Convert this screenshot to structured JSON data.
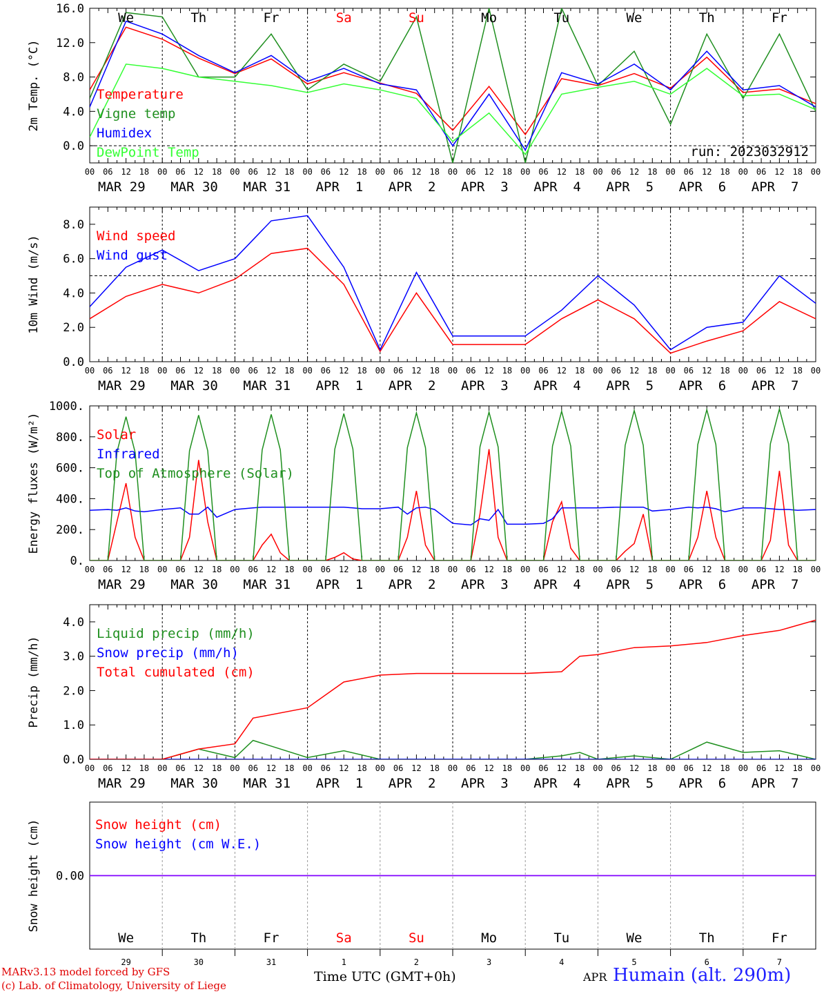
{
  "meta": {
    "run_label": "run: 2023032912",
    "model_line": "MARv3.13 model forced by GFS",
    "copyright_line": "(c) Lab. of Climatology, University of Liege",
    "x_axis_title": "Time UTC (GMT+0h)",
    "station": "Humain (alt. 290m)",
    "month_footer": "APR"
  },
  "days": {
    "weekday_names": [
      "We",
      "Th",
      "Fr",
      "Sa",
      "Su",
      "Mo",
      "Tu",
      "We",
      "Th",
      "Fr"
    ],
    "weekend_flags": [
      false,
      false,
      false,
      true,
      true,
      false,
      false,
      false,
      false,
      false
    ],
    "date_labels": [
      "MAR 29",
      "MAR 30",
      "MAR 31",
      "APR  1",
      "APR  2",
      "APR  3",
      "APR  4",
      "APR  5",
      "APR  6",
      "APR  7"
    ],
    "day_numbers": [
      "29",
      "30",
      "31",
      "1",
      "2",
      "3",
      "4",
      "5",
      "6",
      "7"
    ],
    "hour_labels": [
      "00",
      "06",
      "12",
      "18"
    ],
    "final_hour_label": "00"
  },
  "colors": {
    "red": "#ff0000",
    "green": "#1f8f1f",
    "blue": "#0000ff",
    "light_green": "#33ff33",
    "purple": "#8000ff",
    "weekend": "#ff0000",
    "grid": "#000000"
  },
  "chart_data": [
    {
      "type": "line",
      "ylabel": "2m Temp. (°C)",
      "ylim": [
        -2,
        16
      ],
      "yticks": [
        "16.0",
        "12.0",
        "8.0",
        "4.0",
        "0.0"
      ],
      "ytick_values": [
        16,
        12,
        8,
        4,
        0
      ],
      "dashed_y": 0,
      "show_weekdays": true,
      "show_run": true,
      "x_days": [
        0,
        0.5,
        1,
        1.5,
        2,
        2.5,
        3,
        3.5,
        4,
        4.5,
        5,
        5.5,
        6,
        6.5,
        7,
        7.5,
        8,
        8.5,
        9,
        9.5,
        10
      ],
      "series": [
        {
          "name": "Temperature",
          "color": "red",
          "values": [
            6.5,
            13.8,
            12.4,
            10.2,
            8.4,
            10.1,
            7.2,
            8.5,
            7.3,
            6.1,
            1.8,
            6.9,
            1.3,
            7.8,
            7.0,
            8.4,
            6.7,
            10.3,
            6.2,
            6.6,
            4.9
          ]
        },
        {
          "name": "Vigne temp",
          "color": "green",
          "values": [
            5.5,
            15.5,
            15.0,
            8.0,
            8.0,
            13.0,
            6.5,
            9.5,
            7.5,
            15.0,
            -2.0,
            16.0,
            -2.0,
            16.0,
            7.0,
            11.0,
            2.5,
            13.0,
            5.5,
            13.0,
            4.0
          ]
        },
        {
          "name": "Humidex",
          "color": "blue",
          "values": [
            4.5,
            14.5,
            13.0,
            10.5,
            8.5,
            10.5,
            7.5,
            9.0,
            7.2,
            6.5,
            0.0,
            6.0,
            -0.5,
            8.5,
            7.2,
            9.5,
            6.5,
            11.0,
            6.5,
            7.0,
            4.5
          ]
        },
        {
          "name": "DewPoint Temp",
          "color": "light_green",
          "values": [
            1.0,
            9.5,
            9.0,
            8.0,
            7.5,
            7.0,
            6.2,
            7.2,
            6.5,
            5.5,
            0.5,
            3.8,
            -1.0,
            6.0,
            6.8,
            7.5,
            6.0,
            9.0,
            5.8,
            6.0,
            4.2
          ]
        }
      ]
    },
    {
      "type": "line",
      "ylabel": "10m Wind (m/s)",
      "ylim": [
        0,
        9
      ],
      "yticks": [
        "8.0",
        "6.0",
        "4.0",
        "2.0",
        "0.0"
      ],
      "ytick_values": [
        8,
        6,
        4,
        2,
        0
      ],
      "dashed_y": 5,
      "x_days": [
        0,
        0.5,
        1,
        1.5,
        2,
        2.5,
        3,
        3.5,
        4,
        4.5,
        5,
        5.5,
        6,
        6.5,
        7,
        7.5,
        8,
        8.5,
        9,
        9.5,
        10
      ],
      "series": [
        {
          "name": "Wind speed",
          "color": "red",
          "values": [
            2.5,
            3.8,
            4.5,
            4.0,
            4.8,
            6.3,
            6.6,
            4.5,
            0.6,
            4.0,
            1.0,
            1.0,
            1.0,
            2.5,
            3.6,
            2.5,
            0.5,
            1.2,
            1.8,
            3.5,
            2.5
          ]
        },
        {
          "name": "Wind gust",
          "color": "blue",
          "values": [
            3.2,
            5.5,
            6.5,
            5.3,
            6.0,
            8.2,
            8.5,
            5.5,
            0.7,
            5.2,
            1.5,
            1.5,
            1.5,
            3.0,
            5.0,
            3.3,
            0.7,
            2.0,
            2.3,
            5.0,
            3.4
          ]
        }
      ]
    },
    {
      "type": "line",
      "ylabel": "Energy fluxes (W/m²)",
      "ylim": [
        0,
        1000
      ],
      "yticks": [
        "1000.",
        "800.",
        "600.",
        "400.",
        "200.",
        "0."
      ],
      "ytick_values": [
        1000,
        800,
        600,
        400,
        200,
        0
      ],
      "x_days": [
        0,
        0.25,
        0.375,
        0.5,
        0.625,
        0.75,
        1,
        1.25,
        1.375,
        1.5,
        1.625,
        1.75,
        2,
        2.25,
        2.375,
        2.5,
        2.625,
        2.75,
        3,
        3.25,
        3.375,
        3.5,
        3.625,
        3.75,
        4,
        4.25,
        4.375,
        4.5,
        4.625,
        4.75,
        5,
        5.25,
        5.375,
        5.5,
        5.625,
        5.75,
        6,
        6.25,
        6.375,
        6.5,
        6.625,
        6.75,
        7,
        7.25,
        7.375,
        7.5,
        7.625,
        7.75,
        8,
        8.25,
        8.375,
        8.5,
        8.625,
        8.75,
        9,
        9.25,
        9.375,
        9.5,
        9.625,
        9.75,
        10
      ],
      "series": [
        {
          "name": "Solar",
          "color": "red",
          "values": [
            0,
            0,
            250,
            500,
            150,
            0,
            0,
            0,
            150,
            650,
            250,
            0,
            0,
            0,
            100,
            170,
            50,
            0,
            0,
            0,
            20,
            50,
            10,
            0,
            0,
            0,
            150,
            450,
            100,
            0,
            0,
            0,
            300,
            720,
            150,
            0,
            0,
            0,
            250,
            380,
            80,
            0,
            0,
            0,
            60,
            110,
            300,
            0,
            0,
            0,
            150,
            450,
            150,
            0,
            0,
            0,
            130,
            580,
            100,
            0,
            0
          ]
        },
        {
          "name": "Infrared",
          "color": "blue",
          "values": [
            325,
            330,
            325,
            340,
            320,
            315,
            330,
            340,
            300,
            300,
            345,
            280,
            330,
            340,
            345,
            345,
            345,
            345,
            345,
            345,
            345,
            345,
            340,
            335,
            335,
            345,
            300,
            340,
            345,
            330,
            240,
            230,
            270,
            260,
            330,
            235,
            235,
            240,
            270,
            340,
            340,
            340,
            340,
            345,
            345,
            345,
            345,
            320,
            330,
            345,
            340,
            345,
            335,
            315,
            340,
            340,
            335,
            330,
            330,
            325,
            330
          ]
        },
        {
          "name": "Top of Atmosphere (Solar)",
          "color": "green",
          "values": [
            0,
            0,
            700,
            930,
            700,
            0,
            0,
            0,
            710,
            940,
            710,
            0,
            0,
            0,
            715,
            945,
            715,
            0,
            0,
            0,
            720,
            950,
            720,
            0,
            0,
            0,
            730,
            955,
            730,
            0,
            0,
            0,
            735,
            960,
            735,
            0,
            0,
            0,
            740,
            965,
            740,
            0,
            0,
            0,
            745,
            970,
            745,
            0,
            0,
            0,
            750,
            975,
            750,
            0,
            0,
            0,
            755,
            980,
            755,
            0,
            0
          ]
        }
      ]
    },
    {
      "type": "line",
      "ylabel": "Precip (mm/h)",
      "ylim": [
        0,
        4.5
      ],
      "yticks": [
        "4.0",
        "3.0",
        "2.0",
        "1.0",
        "0.0"
      ],
      "ytick_values": [
        4,
        3,
        2,
        1,
        0
      ],
      "x_days": [
        0,
        1,
        1.5,
        2,
        2.25,
        3,
        3.5,
        4,
        4.5,
        5,
        6,
        6.5,
        6.75,
        7,
        7.5,
        8,
        8.5,
        9,
        9.5,
        10
      ],
      "series": [
        {
          "name": "Liquid precip (mm/h)",
          "color": "green",
          "values": [
            0,
            0,
            0.3,
            0.05,
            0.55,
            0.05,
            0.25,
            0,
            0,
            0,
            0,
            0.1,
            0.2,
            0,
            0.1,
            0,
            0.5,
            0.2,
            0.25,
            0
          ]
        },
        {
          "name": "Snow precip (mm/h)",
          "color": "blue",
          "values": [
            0,
            0,
            0,
            0,
            0,
            0,
            0,
            0,
            0,
            0,
            0,
            0,
            0,
            0,
            0,
            0,
            0,
            0,
            0,
            0
          ]
        },
        {
          "name": "Total cumulated (cm)",
          "color": "red",
          "values": [
            0,
            0,
            0.3,
            0.45,
            1.2,
            1.5,
            2.25,
            2.45,
            2.5,
            2.5,
            2.5,
            2.55,
            3.0,
            3.05,
            3.25,
            3.3,
            3.4,
            3.6,
            3.75,
            4.05
          ]
        }
      ]
    },
    {
      "type": "line",
      "ylabel": "Snow height (cm)",
      "ylim": [
        -1,
        1
      ],
      "yticks": [
        "0.00"
      ],
      "ytick_values": [
        0
      ],
      "x_days": [
        0,
        10
      ],
      "series": [
        {
          "name": "Snow height (cm)",
          "color": "purple",
          "values": [
            0,
            0
          ]
        },
        {
          "name": "Snow height (cm W.E.)",
          "color": "purple",
          "values": [
            0,
            0
          ]
        }
      ]
    }
  ],
  "legends": [
    [
      {
        "label": "Temperature",
        "color": "red"
      },
      {
        "label": "Vigne temp",
        "color": "green"
      },
      {
        "label": "Humidex",
        "color": "blue"
      },
      {
        "label": "DewPoint Temp",
        "color": "light_green"
      }
    ],
    [
      {
        "label": "Wind speed",
        "color": "red"
      },
      {
        "label": "Wind gust",
        "color": "blue"
      }
    ],
    [
      {
        "label": "Solar",
        "color": "red"
      },
      {
        "label": "Infrared",
        "color": "blue"
      },
      {
        "label": "Top of Atmosphere (Solar)",
        "color": "green"
      }
    ],
    [
      {
        "label": "Liquid precip (mm/h)",
        "color": "green"
      },
      {
        "label": "Snow precip (mm/h)",
        "color": "blue"
      },
      {
        "label": "Total cumulated (cm)",
        "color": "red"
      }
    ],
    [
      {
        "label": "Snow height (cm)",
        "color": "red"
      },
      {
        "label": "Snow height (cm W.E.)",
        "color": "blue"
      }
    ]
  ]
}
